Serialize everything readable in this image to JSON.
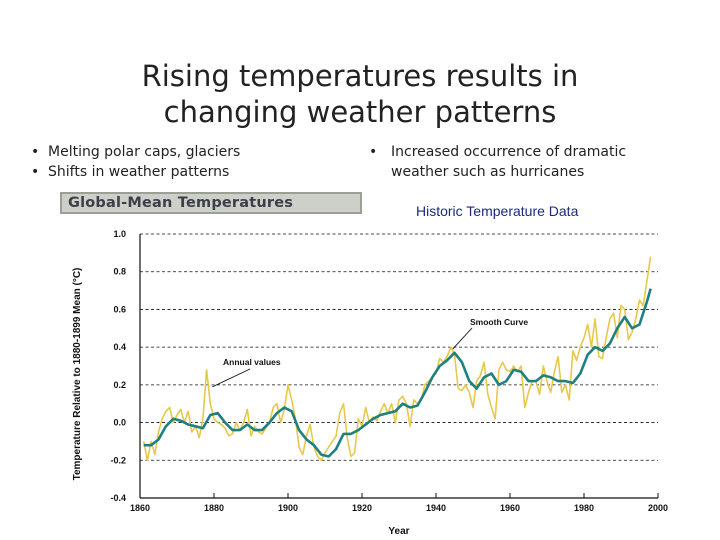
{
  "slide": {
    "title_line1": "Rising temperatures results in",
    "title_line2": "changing weather patterns",
    "bullets_left": [
      "Melting polar caps, glaciers",
      "Shifts in weather patterns"
    ],
    "bullets_right_line1": "Increased occurrence of dramatic",
    "bullets_right_line2": "weather such as hurricanes",
    "chart_banner": "Global-Mean Temperatures",
    "caption": "Historic Temperature Data"
  },
  "colors": {
    "annual_series": "#e8c84a",
    "smooth_series": "#1f8080",
    "caption": "#1c2a7a"
  },
  "chart_data": {
    "type": "line",
    "title": "Global-Mean Temperatures",
    "xlabel": "Year",
    "ylabel": "Temperature Relative to 1880-1899 Mean (°C)",
    "xlim": [
      1860,
      2000
    ],
    "ylim": [
      -0.4,
      1.0
    ],
    "x_ticks": [
      "1860",
      "1880",
      "1900",
      "1920",
      "1940",
      "1960",
      "1980",
      "2000"
    ],
    "y_ticks": [
      "-0.4",
      "-0.2",
      "0.0",
      "0.2",
      "0.4",
      "0.6",
      "0.8",
      "1.0"
    ],
    "grid": true,
    "annotations": [
      {
        "text": "Annual values",
        "x": 1879,
        "y": 0.2
      },
      {
        "text": "Smooth Curve",
        "x": 1944,
        "y": 0.38
      }
    ],
    "series": [
      {
        "name": "Annual values",
        "x": [
          1861,
          1862,
          1863,
          1864,
          1865,
          1866,
          1867,
          1868,
          1869,
          1870,
          1871,
          1872,
          1873,
          1874,
          1875,
          1876,
          1877,
          1878,
          1879,
          1880,
          1881,
          1882,
          1883,
          1884,
          1885,
          1886,
          1887,
          1888,
          1889,
          1890,
          1891,
          1892,
          1893,
          1894,
          1895,
          1896,
          1897,
          1898,
          1899,
          1900,
          1901,
          1902,
          1903,
          1904,
          1905,
          1906,
          1907,
          1908,
          1909,
          1910,
          1911,
          1912,
          1913,
          1914,
          1915,
          1916,
          1917,
          1918,
          1919,
          1920,
          1921,
          1922,
          1923,
          1924,
          1925,
          1926,
          1927,
          1928,
          1929,
          1930,
          1931,
          1932,
          1933,
          1934,
          1935,
          1936,
          1937,
          1938,
          1939,
          1940,
          1941,
          1942,
          1943,
          1944,
          1945,
          1946,
          1947,
          1948,
          1949,
          1950,
          1951,
          1952,
          1953,
          1954,
          1955,
          1956,
          1957,
          1958,
          1959,
          1960,
          1961,
          1962,
          1963,
          1964,
          1965,
          1966,
          1967,
          1968,
          1969,
          1970,
          1971,
          1972,
          1973,
          1974,
          1975,
          1976,
          1977,
          1978,
          1979,
          1980,
          1981,
          1982,
          1983,
          1984,
          1985,
          1986,
          1987,
          1988,
          1989,
          1990,
          1991,
          1992,
          1993,
          1994,
          1995,
          1996,
          1997,
          1998
        ],
        "y": [
          -0.1,
          -0.2,
          -0.1,
          -0.17,
          -0.05,
          0.02,
          0.06,
          0.08,
          0.0,
          0.04,
          0.07,
          0.0,
          0.06,
          -0.05,
          -0.02,
          -0.08,
          0.02,
          0.28,
          0.1,
          0.02,
          0.0,
          -0.01,
          -0.03,
          -0.07,
          -0.06,
          0.0,
          -0.04,
          0.0,
          0.07,
          -0.07,
          -0.02,
          -0.05,
          -0.06,
          -0.03,
          0.0,
          0.08,
          0.1,
          0.0,
          0.07,
          0.2,
          0.12,
          0.02,
          -0.13,
          -0.17,
          -0.07,
          -0.01,
          -0.13,
          -0.18,
          -0.2,
          -0.16,
          -0.13,
          -0.1,
          -0.07,
          0.05,
          0.1,
          -0.08,
          -0.18,
          -0.16,
          0.02,
          -0.02,
          0.08,
          0.0,
          0.03,
          0.01,
          0.06,
          0.1,
          0.05,
          0.1,
          0.0,
          0.12,
          0.14,
          0.1,
          -0.02,
          0.12,
          0.1,
          0.12,
          0.2,
          0.22,
          0.24,
          0.26,
          0.34,
          0.32,
          0.35,
          0.4,
          0.36,
          0.18,
          0.17,
          0.2,
          0.16,
          0.08,
          0.22,
          0.25,
          0.32,
          0.15,
          0.08,
          0.02,
          0.28,
          0.32,
          0.28,
          0.27,
          0.3,
          0.27,
          0.3,
          0.08,
          0.16,
          0.22,
          0.22,
          0.15,
          0.3,
          0.22,
          0.16,
          0.27,
          0.35,
          0.16,
          0.2,
          0.12,
          0.38,
          0.33,
          0.4,
          0.45,
          0.52,
          0.4,
          0.55,
          0.35,
          0.34,
          0.45,
          0.55,
          0.58,
          0.45,
          0.62,
          0.6,
          0.44,
          0.48,
          0.55,
          0.65,
          0.62,
          0.75,
          0.88
        ]
      },
      {
        "name": "Smooth Curve",
        "x": [
          1861,
          1863,
          1865,
          1867,
          1869,
          1871,
          1873,
          1875,
          1877,
          1879,
          1881,
          1883,
          1885,
          1887,
          1889,
          1891,
          1893,
          1895,
          1897,
          1899,
          1901,
          1903,
          1905,
          1907,
          1909,
          1911,
          1913,
          1915,
          1917,
          1919,
          1921,
          1923,
          1925,
          1927,
          1929,
          1931,
          1933,
          1935,
          1937,
          1939,
          1941,
          1943,
          1945,
          1947,
          1949,
          1951,
          1953,
          1955,
          1957,
          1959,
          1961,
          1963,
          1965,
          1967,
          1969,
          1971,
          1973,
          1975,
          1977,
          1979,
          1981,
          1983,
          1985,
          1987,
          1989,
          1991,
          1993,
          1995,
          1997,
          1998
        ],
        "y": [
          -0.12,
          -0.12,
          -0.09,
          -0.02,
          0.02,
          0.01,
          -0.01,
          -0.02,
          -0.03,
          0.04,
          0.05,
          0.0,
          -0.04,
          -0.04,
          -0.01,
          -0.04,
          -0.04,
          0.0,
          0.05,
          0.08,
          0.06,
          -0.04,
          -0.09,
          -0.12,
          -0.17,
          -0.18,
          -0.14,
          -0.06,
          -0.06,
          -0.04,
          -0.01,
          0.02,
          0.04,
          0.05,
          0.06,
          0.1,
          0.08,
          0.09,
          0.16,
          0.24,
          0.3,
          0.33,
          0.37,
          0.32,
          0.22,
          0.18,
          0.24,
          0.26,
          0.2,
          0.22,
          0.28,
          0.27,
          0.22,
          0.22,
          0.25,
          0.24,
          0.22,
          0.22,
          0.21,
          0.26,
          0.36,
          0.4,
          0.38,
          0.42,
          0.5,
          0.56,
          0.5,
          0.52,
          0.64,
          0.71
        ]
      }
    ]
  }
}
